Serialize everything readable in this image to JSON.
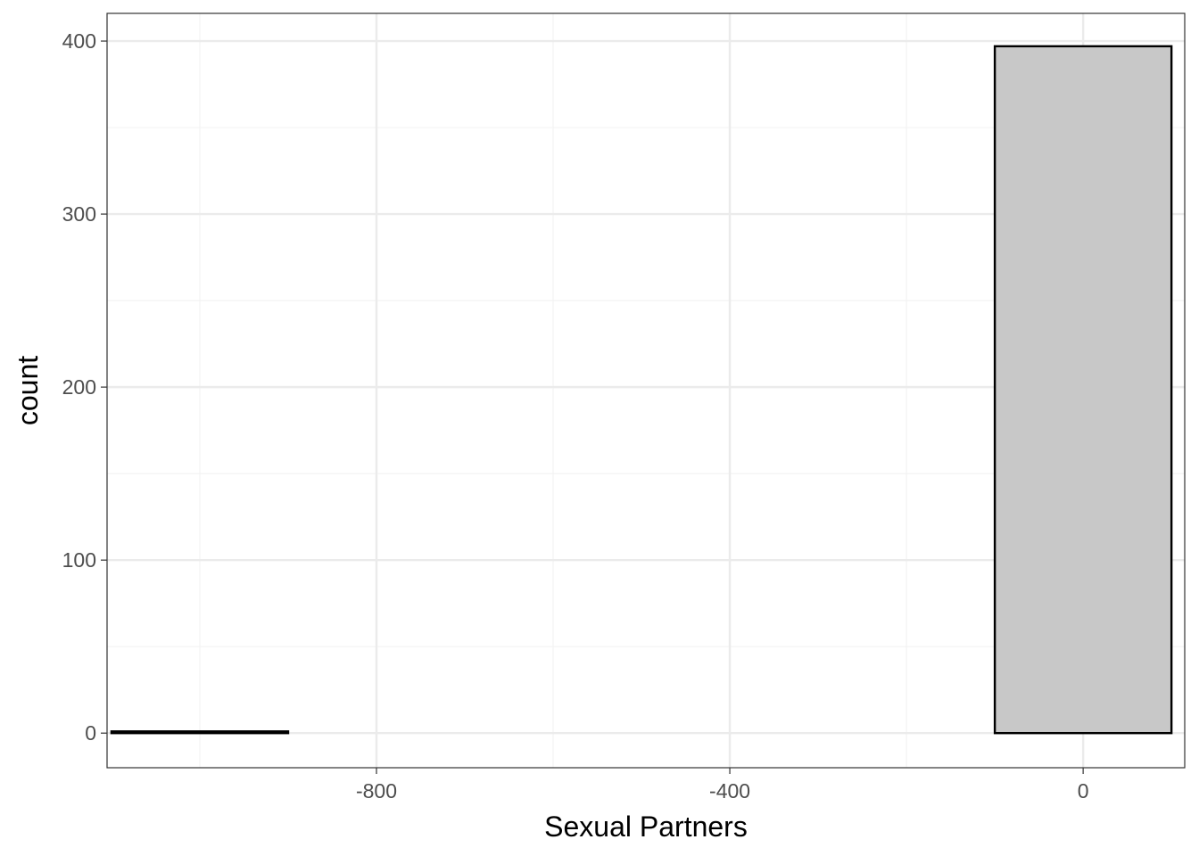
{
  "chart_data": {
    "type": "bar",
    "title": "",
    "xlabel": "Sexual Partners",
    "ylabel": "count",
    "xlim": [
      -1105,
      115
    ],
    "ylim": [
      -20,
      416
    ],
    "x_ticks": [
      -800,
      -400,
      0
    ],
    "x_tick_labels": [
      "-800",
      "-400",
      "0"
    ],
    "x_minor_ticks": [
      -1000,
      -600,
      -200
    ],
    "y_ticks": [
      0,
      100,
      200,
      300,
      400
    ],
    "y_tick_labels": [
      "0",
      "100",
      "200",
      "300",
      "400"
    ],
    "y_minor_ticks": [
      50,
      150,
      250,
      350
    ],
    "bin_width": 200,
    "bins": [
      {
        "x_min": -1000,
        "x_max": -800,
        "count": 1
      },
      {
        "x_min": -800,
        "x_max": -600,
        "count": 0
      },
      {
        "x_min": -600,
        "x_max": -400,
        "count": 0
      },
      {
        "x_min": -400,
        "x_max": -200,
        "count": 0
      },
      {
        "x_min": -200,
        "x_max": 0,
        "count": 0
      },
      {
        "x_min": 0,
        "x_max": 200,
        "count": 397
      }
    ],
    "grid": true,
    "legend": "none",
    "colors": {
      "bar_fill": "#c8c8c8",
      "bar_stroke": "#000000",
      "grid_major": "#ebebeb",
      "grid_minor": "#f3f3f3",
      "panel_border": "#333333"
    }
  }
}
